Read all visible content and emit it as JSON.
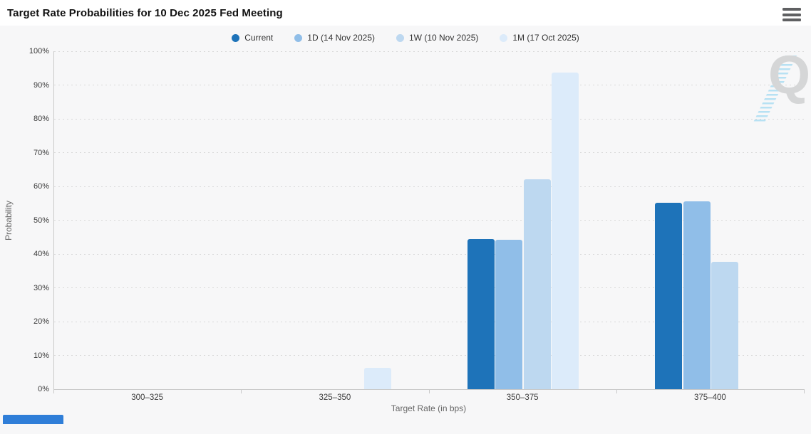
{
  "header": {
    "title": "Target Rate Probabilities for 10 Dec 2025 Fed Meeting"
  },
  "chart_data": {
    "type": "bar",
    "title": "Target Rate Probabilities for 10 Dec 2025 Fed Meeting",
    "categories": [
      "300–325",
      "325–350",
      "350–375",
      "375–400"
    ],
    "series": [
      {
        "name": "Current",
        "color": "#1e73b9",
        "values": [
          0,
          0,
          44.5,
          55.2
        ]
      },
      {
        "name": "1D (14 Nov 2025)",
        "color": "#90bee8",
        "values": [
          0,
          0,
          44.2,
          55.6
        ]
      },
      {
        "name": "1W (10 Nov 2025)",
        "color": "#bdd8f0",
        "values": [
          0,
          0,
          62.2,
          37.7
        ]
      },
      {
        "name": "1M (17 Oct 2025)",
        "color": "#dcebfa",
        "values": [
          0,
          6.4,
          93.6,
          0
        ]
      }
    ],
    "xlabel": "Target Rate (in bps)",
    "ylabel": "Probability",
    "ylim": [
      0,
      100
    ],
    "ytick_labels": [
      "0%",
      "10%",
      "20%",
      "30%",
      "40%",
      "50%",
      "60%",
      "70%",
      "80%",
      "90%",
      "100%"
    ],
    "grid": "dotted horizontal gridlines every 10%",
    "legend_position": "top-center"
  },
  "watermark": {
    "letter": "Q"
  },
  "colors": {
    "background": "#f7f7f8",
    "title_bar": "#ffffff",
    "gridline": "#d8d8d8",
    "axis_line": "#c9c9c9",
    "corner_strip": "#2f7ed8"
  }
}
